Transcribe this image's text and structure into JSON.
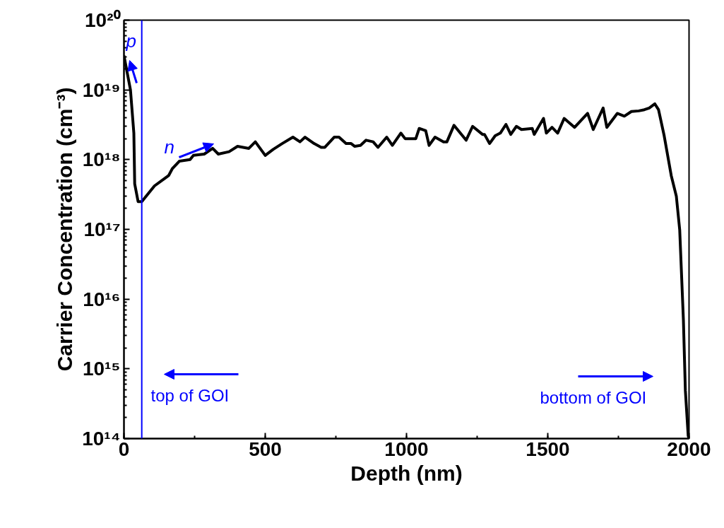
{
  "chart_data": {
    "type": "line",
    "xlabel": "Depth (nm)",
    "ylabel": "Carrier Concentration (cm⁻³)",
    "x": [
      0,
      23,
      35,
      38,
      50,
      63,
      108,
      158,
      171,
      196,
      234,
      246,
      284,
      314,
      334,
      372,
      402,
      442,
      465,
      500,
      528,
      560,
      598,
      623,
      641,
      673,
      698,
      711,
      744,
      761,
      786,
      804,
      817,
      837,
      857,
      882,
      899,
      930,
      950,
      980,
      995,
      1033,
      1045,
      1068,
      1080,
      1101,
      1131,
      1143,
      1168,
      1211,
      1234,
      1269,
      1276,
      1294,
      1314,
      1332,
      1352,
      1369,
      1389,
      1407,
      1445,
      1452,
      1485,
      1495,
      1515,
      1535,
      1558,
      1595,
      1641,
      1661,
      1696,
      1709,
      1746,
      1771,
      1796,
      1822,
      1842,
      1859,
      1879,
      1892,
      1912,
      1937,
      1955,
      1967,
      1980,
      1987,
      1997,
      2000
    ],
    "series": [
      {
        "color": "#000000",
        "values": [
          3.1e+19,
          1e+19,
          2.4e+18,
          4.5e+17,
          2.5e+17,
          2.5e+17,
          4.2e+17,
          5.9e+17,
          7.4e+17,
          9.5e+17,
          1e+18,
          1.15e+18,
          1.2e+18,
          1.45e+18,
          1.2e+18,
          1.3e+18,
          1.55e+18,
          1.45e+18,
          1.8e+18,
          1.15e+18,
          1.4e+18,
          1.7e+18,
          2.1e+18,
          1.8e+18,
          2.1e+18,
          1.7e+18,
          1.5e+18,
          1.5e+18,
          2.1e+18,
          2.1e+18,
          1.7e+18,
          1.7e+18,
          1.55e+18,
          1.6e+18,
          1.9e+18,
          1.8e+18,
          1.5e+18,
          2.1e+18,
          1.6e+18,
          2.4e+18,
          2e+18,
          2e+18,
          2.8e+18,
          2.6e+18,
          1.6e+18,
          2.1e+18,
          1.8e+18,
          1.8e+18,
          3.1e+18,
          1.9e+18,
          3e+18,
          2.3e+18,
          2.3e+18,
          1.7e+18,
          2.2e+18,
          2.4e+18,
          3.2e+18,
          2.3e+18,
          3e+18,
          2.7e+18,
          2.8e+18,
          2.3e+18,
          3.9e+18,
          2.4e+18,
          2.9e+18,
          2.4e+18,
          3.9e+18,
          2.9e+18,
          4.6e+18,
          2.7e+18,
          5.5e+18,
          2.9e+18,
          4.6e+18,
          4.2e+18,
          4.9e+18,
          5e+18,
          5.2e+18,
          5.5e+18,
          6.3e+18,
          5.2e+18,
          2.2e+18,
          5.9e+17,
          3e+17,
          9.8e+16,
          5100000000000000.0,
          490000000000000.0,
          110000000000000.0,
          100000000000000.0
        ]
      }
    ],
    "log": "y",
    "xlim": [
      0,
      2000
    ],
    "ylim": [
      100000000000000.0,
      1e+20
    ],
    "xticks": [
      0,
      500,
      1000,
      1500,
      2000
    ],
    "yticks": [
      {
        "value": 100000000000000.0,
        "label": "10¹⁴"
      },
      {
        "value": 1000000000000000.0,
        "label": "10¹⁵"
      },
      {
        "value": 1e+16,
        "label": "10¹⁶"
      },
      {
        "value": 1e+17,
        "label": "10¹⁷"
      },
      {
        "value": 1e+18,
        "label": "10¹⁸"
      },
      {
        "value": 1e+19,
        "label": "10¹⁹"
      },
      {
        "value": 1e+20,
        "label": "10²⁰"
      }
    ],
    "ref_lines": [
      {
        "axis": "x",
        "value": 63,
        "label": null,
        "color": "#0000ff"
      }
    ],
    "annotations": [
      "p",
      "n",
      "top of GOI",
      "bottom of GOI"
    ],
    "grid": false,
    "line_style": "solid",
    "marker": "none"
  }
}
